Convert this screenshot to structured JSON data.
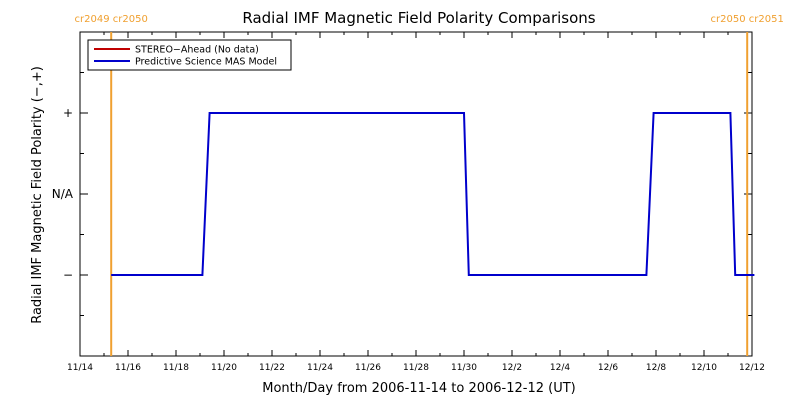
{
  "chart_data": {
    "type": "line",
    "title": "Radial IMF Magnetic Field Polarity Comparisons",
    "xlabel": "Month/Day from 2006-11-14 to 2006-12-12 (UT)",
    "ylabel": "Radial IMF Magnetic Field Polarity (−,+)",
    "x_range": [
      "2006-11-14",
      "2006-12-12"
    ],
    "x_ticks": [
      {
        "date": "2006-11-14",
        "label": "11/14"
      },
      {
        "date": "2006-11-16",
        "label": "11/16"
      },
      {
        "date": "2006-11-18",
        "label": "11/18"
      },
      {
        "date": "2006-11-20",
        "label": "11/20"
      },
      {
        "date": "2006-11-22",
        "label": "11/22"
      },
      {
        "date": "2006-11-24",
        "label": "11/24"
      },
      {
        "date": "2006-11-26",
        "label": "11/26"
      },
      {
        "date": "2006-11-28",
        "label": "11/28"
      },
      {
        "date": "2006-11-30",
        "label": "11/30"
      },
      {
        "date": "2006-12-02",
        "label": "12/2"
      },
      {
        "date": "2006-12-04",
        "label": "12/4"
      },
      {
        "date": "2006-12-06",
        "label": "12/6"
      },
      {
        "date": "2006-12-08",
        "label": "12/8"
      },
      {
        "date": "2006-12-10",
        "label": "12/10"
      },
      {
        "date": "2006-12-12",
        "label": "12/12"
      }
    ],
    "y_categories": [
      {
        "value": -1,
        "label": "−"
      },
      {
        "value": 0,
        "label": "N/A"
      },
      {
        "value": 1,
        "label": "+"
      }
    ],
    "ylim": [
      -2,
      2
    ],
    "grid": false,
    "legend_position": "top-left",
    "carrington_markers": [
      {
        "date": "2006-11-15.3",
        "label": "cr2049 cr2050",
        "color": "#f0a030"
      },
      {
        "date": "2006-12-11.8",
        "label": "cr2050 cr2051",
        "color": "#f0a030"
      }
    ],
    "series": [
      {
        "name": "STEREO−Ahead (No data)",
        "color": "#c00000",
        "points": []
      },
      {
        "name": "Predictive Science MAS Model",
        "color": "#0000cc",
        "points": [
          {
            "x": "2006-11-15.3",
            "y": -1
          },
          {
            "x": "2006-11-19.1",
            "y": -1
          },
          {
            "x": "2006-11-19.4",
            "y": 1
          },
          {
            "x": "2006-11-30.0",
            "y": 1
          },
          {
            "x": "2006-11-30.2",
            "y": -1
          },
          {
            "x": "2006-12-07.6",
            "y": -1
          },
          {
            "x": "2006-12-07.9",
            "y": 1
          },
          {
            "x": "2006-12-11.1",
            "y": 1
          },
          {
            "x": "2006-12-11.3",
            "y": -1
          },
          {
            "x": "2006-12-12.1",
            "y": -1
          }
        ]
      }
    ]
  }
}
